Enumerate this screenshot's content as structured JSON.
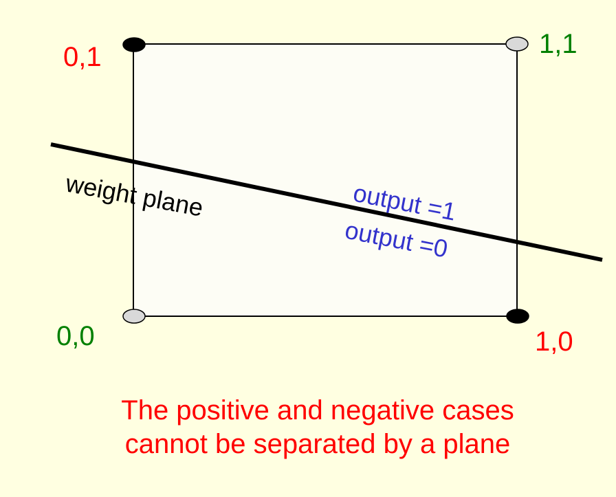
{
  "colors": {
    "background": "#FFFFE1",
    "square_fill": "#FDFDF5",
    "negative_label": "#FF0000",
    "positive_label": "#008000",
    "output_label": "#3333CC",
    "filled_point": "#000000",
    "hollow_point": "#D9D9D9"
  },
  "corners": {
    "top_left": "0,1",
    "top_right": "1,1",
    "bottom_left": "0,0",
    "bottom_right": "1,0"
  },
  "line_label": "weight plane",
  "output_above": "output =1",
  "output_below": "output =0",
  "caption": {
    "line1": "The positive and negative cases",
    "line2": "cannot be separated by a plane"
  }
}
